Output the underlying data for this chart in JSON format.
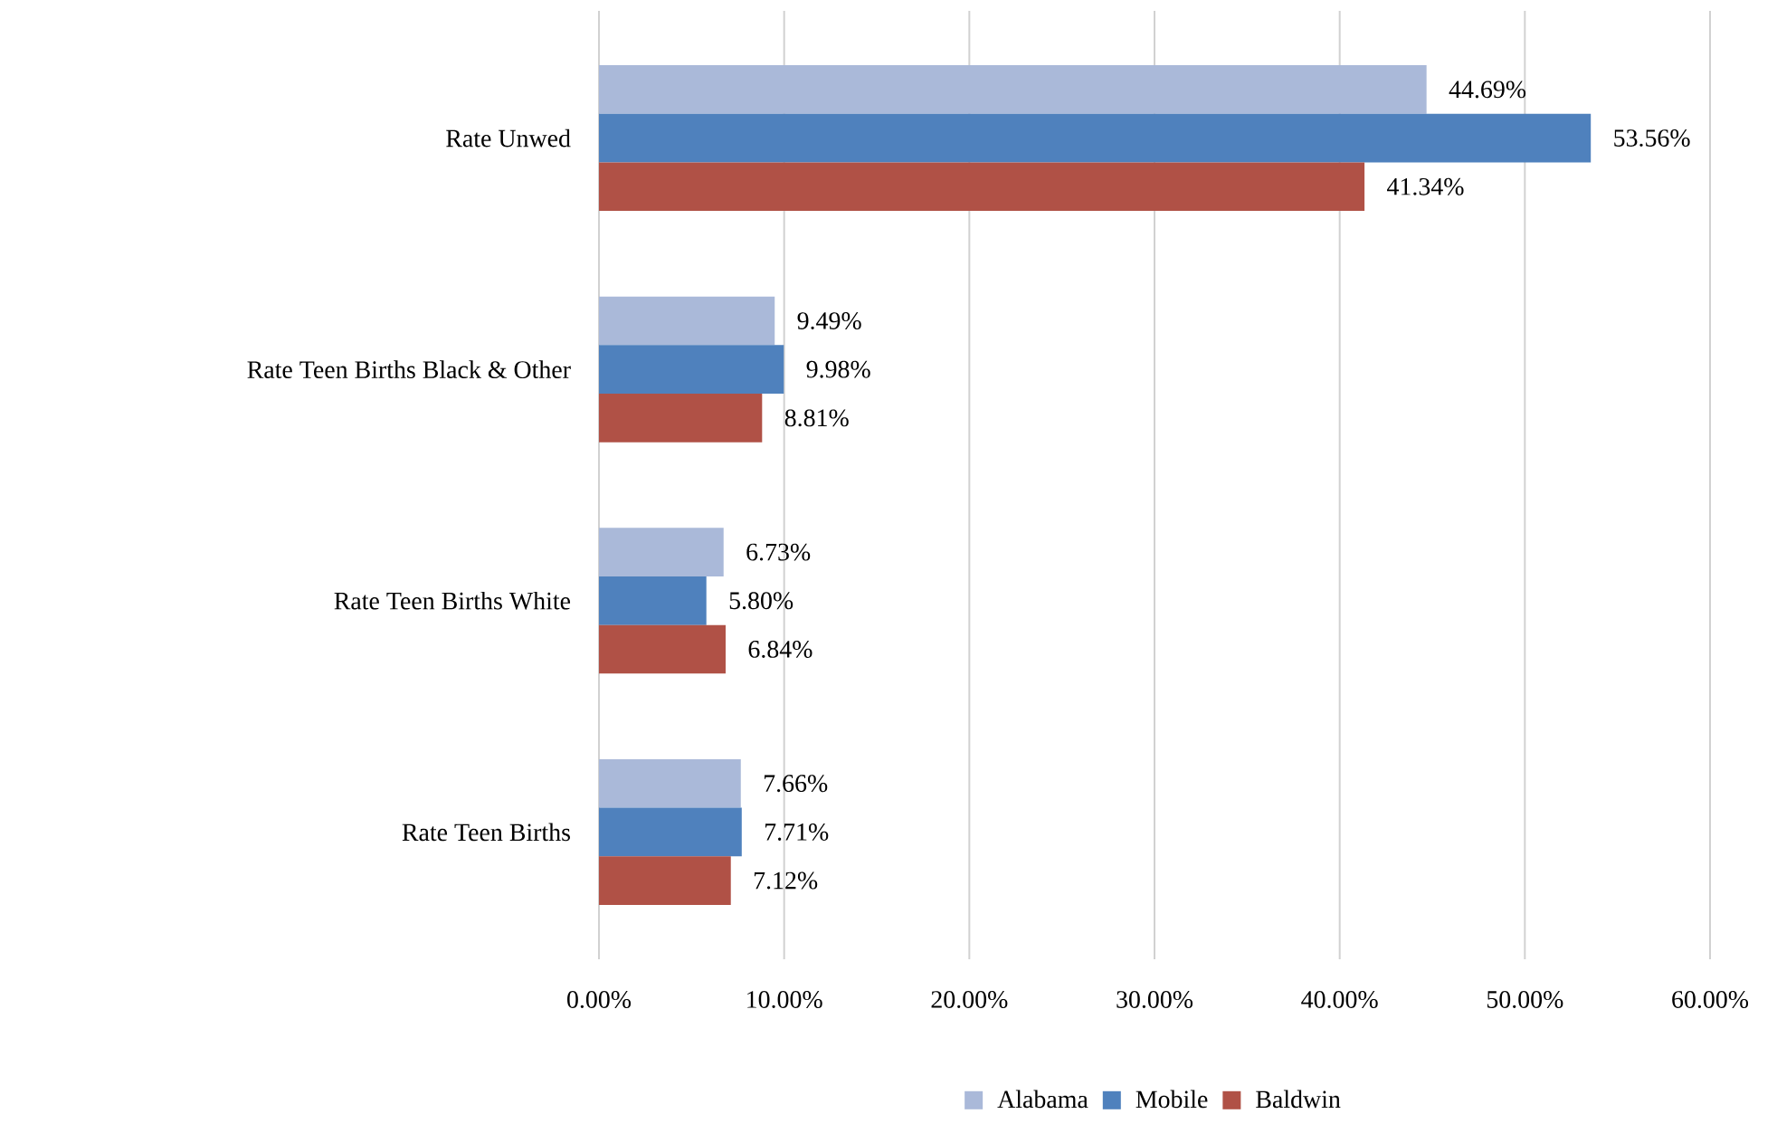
{
  "chart_data": {
    "type": "bar",
    "orientation": "horizontal",
    "categories": [
      "Rate Unwed",
      "Rate Teen Births Black & Other",
      "Rate Teen Births White",
      "Rate Teen Births"
    ],
    "series": [
      {
        "name": "Alabama",
        "color": "#aab9d9",
        "values": [
          44.69,
          9.49,
          6.73,
          7.66
        ],
        "value_labels": [
          "44.69%",
          "9.49%",
          "6.73%",
          "7.66%"
        ]
      },
      {
        "name": "Mobile",
        "color": "#4f81bd",
        "values": [
          53.56,
          9.98,
          5.8,
          7.71
        ],
        "value_labels": [
          "53.56%",
          "9.98%",
          "5.80%",
          "7.71%"
        ]
      },
      {
        "name": "Baldwin",
        "color": "#b05146",
        "values": [
          41.34,
          8.81,
          6.84,
          7.12
        ],
        "value_labels": [
          "41.34%",
          "8.81%",
          "6.84%",
          "7.12%"
        ]
      }
    ],
    "xlim": [
      0,
      60
    ],
    "xticks": [
      {
        "value": 0,
        "label": "0.00%"
      },
      {
        "value": 10,
        "label": "10.00%"
      },
      {
        "value": 20,
        "label": "20.00%"
      },
      {
        "value": 30,
        "label": "30.00%"
      },
      {
        "value": 40,
        "label": "40.00%"
      },
      {
        "value": 50,
        "label": "50.00%"
      },
      {
        "value": 60,
        "label": "60.00%"
      }
    ],
    "grid": "x",
    "legend": "bottom"
  }
}
